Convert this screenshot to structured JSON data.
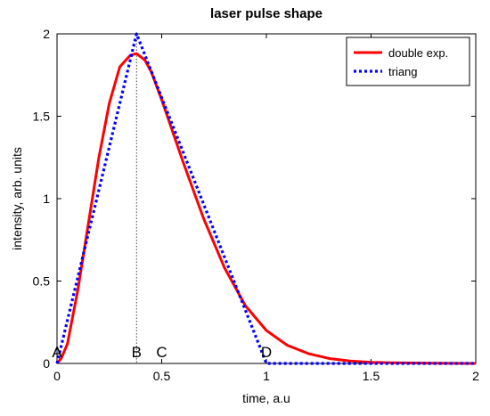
{
  "chart_data": {
    "type": "line",
    "title": "laser pulse shape",
    "xlabel": "time, a.u",
    "ylabel": "intensity,  arb. units",
    "xlim": [
      0,
      2
    ],
    "ylim": [
      0,
      2
    ],
    "xticks": [
      0,
      0.5,
      1,
      1.5,
      2
    ],
    "xtick_labels": [
      "0",
      "0.5",
      "1",
      "1.5",
      "2"
    ],
    "yticks": [
      0,
      0.5,
      1,
      1.5,
      2
    ],
    "ytick_labels": [
      "0",
      "0.5",
      "1",
      "1.5",
      "2"
    ],
    "grid": false,
    "legend_position": "top-right",
    "series": [
      {
        "name": "double exp.",
        "color": "#ff0000",
        "style": "solid",
        "x": [
          0,
          0.02,
          0.05,
          0.1,
          0.15,
          0.2,
          0.25,
          0.3,
          0.35,
          0.38,
          0.42,
          0.45,
          0.5,
          0.6,
          0.7,
          0.8,
          0.9,
          1.0,
          1.1,
          1.2,
          1.3,
          1.4,
          1.5,
          1.6,
          1.8,
          2.0
        ],
        "y": [
          0,
          0.03,
          0.12,
          0.45,
          0.85,
          1.25,
          1.58,
          1.8,
          1.87,
          1.88,
          1.84,
          1.77,
          1.6,
          1.23,
          0.88,
          0.58,
          0.35,
          0.2,
          0.11,
          0.06,
          0.03,
          0.015,
          0.007,
          0.004,
          0.001,
          0
        ]
      },
      {
        "name": "triang",
        "color": "#0000ff",
        "style": "dotted",
        "x": [
          0,
          0.38,
          1.0,
          1.02,
          2.0
        ],
        "y": [
          0,
          2.0,
          0,
          0,
          0
        ]
      }
    ],
    "markers": [
      {
        "label": "A",
        "x": 0
      },
      {
        "label": "B",
        "x": 0.38
      },
      {
        "label": "C",
        "x": 0.5
      },
      {
        "label": "D",
        "x": 1.0
      }
    ]
  }
}
